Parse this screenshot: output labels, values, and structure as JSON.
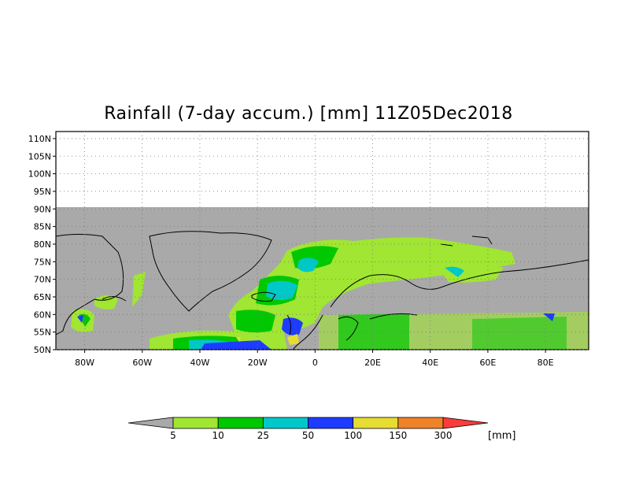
{
  "title": "Rainfall (7-day accum.) [mm] 11Z05Dec2018",
  "map": {
    "lat_labels": [
      "110N",
      "105N",
      "100N",
      "95N",
      "90N",
      "85N",
      "80N",
      "75N",
      "70N",
      "65N",
      "60N",
      "55N",
      "50N"
    ],
    "lon_labels": [
      "80W",
      "60W",
      "40W",
      "20W",
      "0",
      "20E",
      "40E",
      "60E",
      "80E"
    ],
    "lat_range": [
      50,
      112
    ],
    "lon_range": [
      -90,
      95
    ],
    "grid": "dotted",
    "no_data_color": "#a9a9a9",
    "coastline_color": "#000000"
  },
  "colorbar": {
    "ticks": [
      "5",
      "10",
      "25",
      "50",
      "100",
      "150",
      "300"
    ],
    "unit": "[mm]",
    "colors": [
      "#a9a9a9",
      "#a0e632",
      "#00c800",
      "#00c8c8",
      "#1e3cff",
      "#e6dc32",
      "#f08228",
      "#fa3c3c"
    ]
  }
}
